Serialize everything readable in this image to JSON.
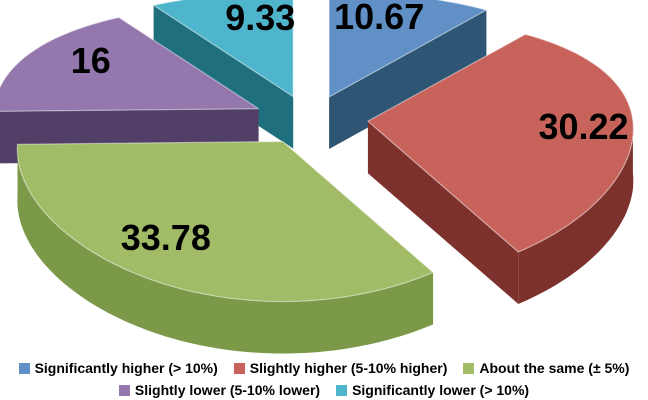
{
  "chart_data": {
    "type": "pie",
    "style": "3d-exploded",
    "direction": "clockwise",
    "start_angle_deg": 0,
    "values_are": "percent",
    "title": "",
    "legend_position": "bottom",
    "background": "#FFFFFF",
    "label_color": "#000000",
    "slices": [
      {
        "label": "Significantly higher (> 10%)",
        "value": 10.67,
        "display": "10.67",
        "color": "#6090C6",
        "side_color": "#2E5674"
      },
      {
        "label": "Slightly higher (5-10% higher)",
        "value": 30.22,
        "display": "30.22",
        "color": "#C7635B",
        "side_color": "#7C312D"
      },
      {
        "label": "About the same (± 5%)",
        "value": 33.78,
        "display": "33.78",
        "color": "#A1BB67",
        "side_color": "#7C9949"
      },
      {
        "label": "Slightly lower (5-10% lower)",
        "value": 16,
        "display": "16",
        "color": "#9478AD",
        "side_color": "#523F68"
      },
      {
        "label": "Significantly lower (> 10%)",
        "value": 9.33,
        "display": "9.33",
        "color": "#4FB5CD",
        "side_color": "#206F7F"
      }
    ]
  }
}
